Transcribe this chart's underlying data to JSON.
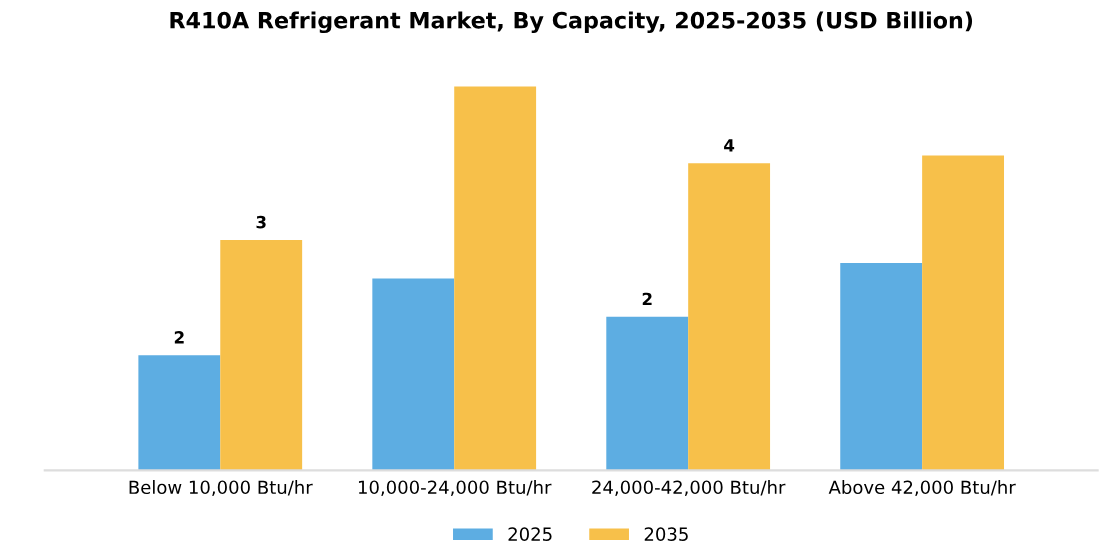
{
  "chart_data": {
    "type": "bar",
    "title": "R410A Refrigerant Market, By Capacity, 2025-2035 (USD Billion)",
    "categories": [
      "Below 10,000 Btu/hr",
      "10,000-24,000 Btu/hr",
      "24,000-42,000 Btu/hr",
      "Above 42,000 Btu/hr"
    ],
    "series": [
      {
        "name": "2025",
        "color": "#5dade2",
        "values": [
          1.5,
          2.5,
          2.0,
          2.7
        ],
        "value_labels": [
          "2",
          null,
          "2",
          null
        ]
      },
      {
        "name": "2035",
        "color": "#f7c04a",
        "values": [
          3.0,
          5.0,
          4.0,
          4.1
        ],
        "value_labels": [
          "3",
          null,
          "4",
          null
        ]
      }
    ],
    "legend": "bottom",
    "grid": false
  }
}
